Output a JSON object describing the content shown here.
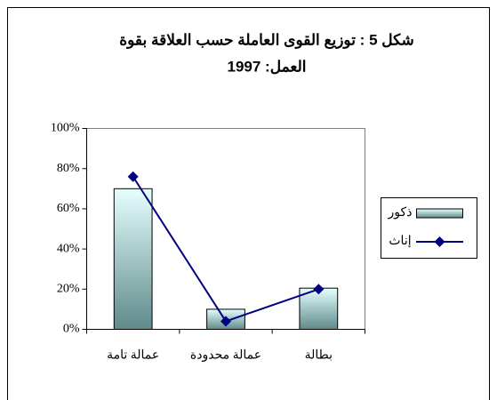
{
  "chart_data": {
    "type": "bar-line",
    "title": [
      "شكل 5 : توزيع القوى العاملة حسب العلاقة بقوة",
      "العمل: 1997"
    ],
    "categories": [
      "عمالة تامة",
      "عمالة محدودة",
      "بطالة"
    ],
    "series": [
      {
        "name": "ذكور",
        "type": "bar",
        "color": "#5f8a8a",
        "values": [
          70,
          10,
          20.5
        ]
      },
      {
        "name": "إناث",
        "type": "line",
        "color": "#000080",
        "values": [
          76,
          4,
          20
        ]
      }
    ],
    "ylim": [
      0,
      100
    ],
    "yticks": [
      {
        "value": 0,
        "label": "0%"
      },
      {
        "value": 20,
        "label": "20%"
      },
      {
        "value": 40,
        "label": "40%"
      },
      {
        "value": 60,
        "label": "60%"
      },
      {
        "value": 80,
        "label": "80%"
      },
      {
        "value": 100,
        "label": "100%"
      }
    ],
    "legend": "right"
  }
}
